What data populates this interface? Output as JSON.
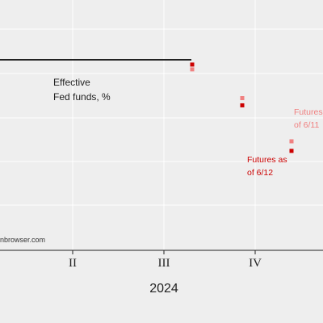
{
  "chart_data": {
    "type": "scatter",
    "x_axis": {
      "categories": [
        "II",
        "III",
        "IV"
      ],
      "xlabel": "2024"
    },
    "series": [
      {
        "name": "Effective Fed funds, %",
        "kind": "line",
        "color": "#222222",
        "points": [
          {
            "x": "II",
            "y": 5.33
          }
        ]
      },
      {
        "name": "Futures as of 6/12",
        "kind": "points",
        "color": "#cc0000",
        "points": [
          {
            "x": "III",
            "y": 5.31
          },
          {
            "x": "IV",
            "y": 5.14
          },
          {
            "x": "IV",
            "y": 4.95
          }
        ]
      },
      {
        "name": "Futures as of 6/11",
        "kind": "points",
        "color": "#f08080",
        "points": [
          {
            "x": "III",
            "y": 5.29
          },
          {
            "x": "IV",
            "y": 5.17
          },
          {
            "x": "IV",
            "y": 4.99
          }
        ]
      }
    ],
    "grid": true,
    "annotations": {
      "effective_line1": "Effective",
      "effective_line2": "Fed funds, %",
      "futures612_line1": "Futures as",
      "futures612_line2": "of 6/12",
      "futures611_line1": "Futures",
      "futures611_line2": "of 6/11"
    },
    "tick_labels": [
      "II",
      "III",
      "IV"
    ],
    "xlabel": "2024"
  },
  "source_text": "nbrowser.com",
  "colors": {
    "background": "#eeeeee",
    "grid": "#ffffff",
    "axis": "#222222",
    "red": "#cc0000",
    "pink": "#f08080"
  }
}
